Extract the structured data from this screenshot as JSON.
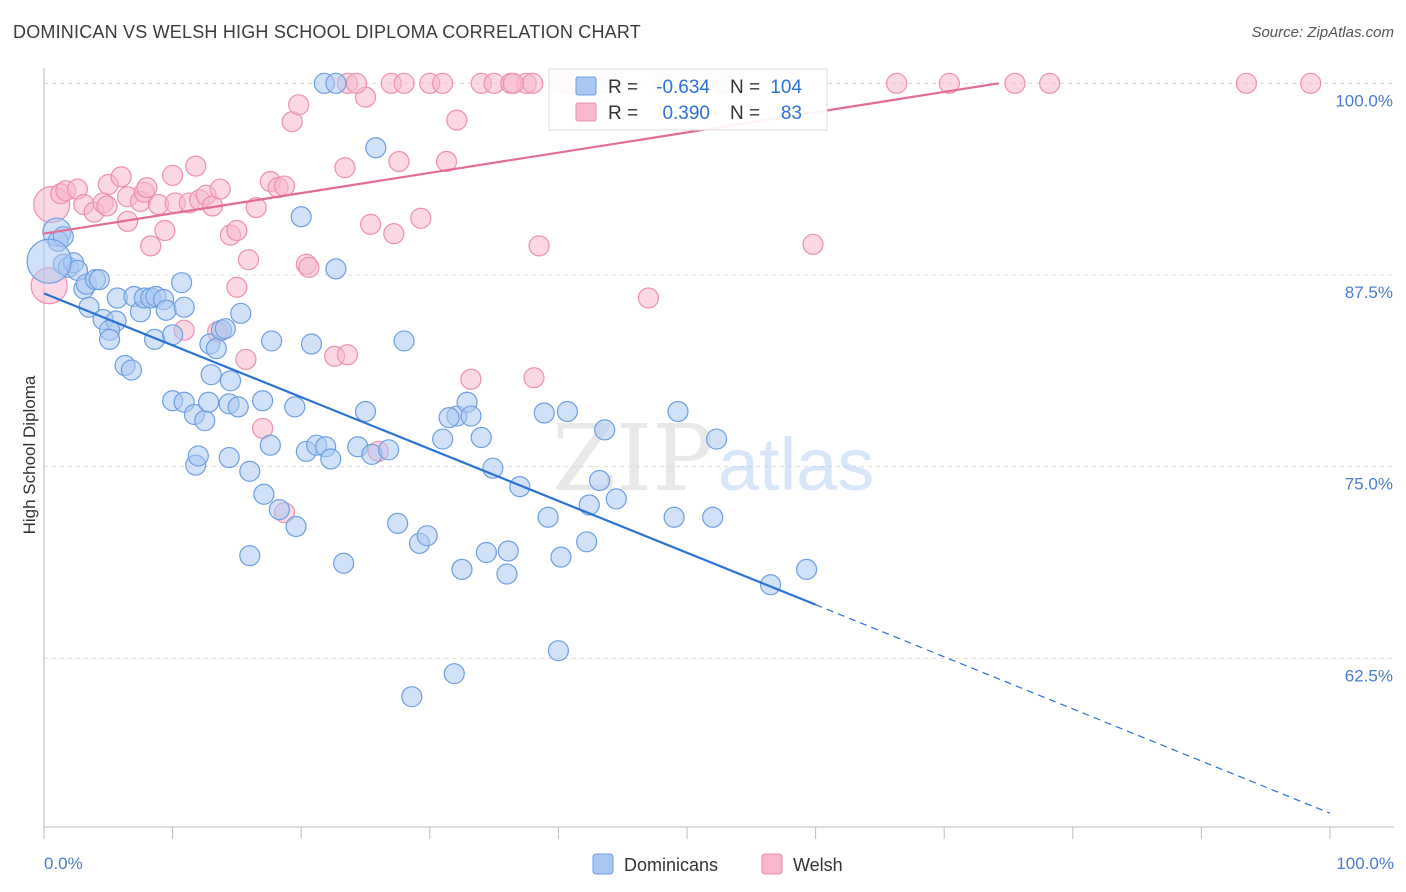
{
  "title": "DOMINICAN VS WELSH HIGH SCHOOL DIPLOMA CORRELATION CHART",
  "source": "Source: ZipAtlas.com",
  "watermark": {
    "zip": "ZIP",
    "atlas": "atlas"
  },
  "colors": {
    "blue_fill": "#a9c8f2",
    "blue_stroke": "#6d9fe0",
    "blue_line": "#2a72d4",
    "pink_fill": "#f7b8cc",
    "pink_stroke": "#ee8fae",
    "pink_line": "#e46b93",
    "tick_text": "#4a7cc9",
    "grid": "#dddddd"
  },
  "legend_top": {
    "rows": [
      {
        "r_label": "R =",
        "r_value": "-0.634",
        "n_label": "N =",
        "n_value": "104",
        "color": "blue"
      },
      {
        "r_label": "R =",
        "r_value": "0.390",
        "n_label": "N =",
        "n_value": "83",
        "color": "pink"
      }
    ]
  },
  "chart_data": {
    "type": "scatter",
    "title": "DOMINICAN VS WELSH HIGH SCHOOL DIPLOMA CORRELATION CHART",
    "xlabel": "",
    "ylabel": "High School Diploma",
    "xlim": [
      0,
      100
    ],
    "ylim": [
      51.5,
      101
    ],
    "x_tick_labels": [
      "0.0%",
      "100.0%"
    ],
    "y_ticks": [
      62.5,
      75.0,
      87.5,
      100.0
    ],
    "y_tick_labels": [
      "62.5%",
      "75.0%",
      "87.5%",
      "100.0%"
    ],
    "grid": true,
    "legend": "bottom-center",
    "series": [
      {
        "name": "Dominicans",
        "color": "blue",
        "R": -0.634,
        "N": 104,
        "trend": {
          "x0": 0,
          "y0": 86.3,
          "x1": 60,
          "y1": 66.0,
          "x_dash_end": 100,
          "y_dash_end": 52.4
        },
        "points": [
          [
            1.0,
            90.3,
            14
          ],
          [
            1.1,
            89.7,
            10
          ],
          [
            1.5,
            90.0,
            10
          ],
          [
            1.5,
            88.2,
            10
          ],
          [
            1.9,
            88.0,
            10
          ],
          [
            2.3,
            88.3,
            10
          ],
          [
            2.6,
            87.8,
            10
          ],
          [
            3.1,
            86.6,
            10
          ],
          [
            3.3,
            86.9,
            10
          ],
          [
            4.0,
            87.2,
            10
          ],
          [
            4.3,
            87.2,
            10
          ],
          [
            3.5,
            85.4,
            10
          ],
          [
            4.6,
            84.6,
            10
          ],
          [
            5.6,
            84.5,
            10
          ],
          [
            5.1,
            83.9,
            10
          ],
          [
            5.1,
            83.3,
            10
          ],
          [
            6.3,
            81.6,
            10
          ],
          [
            6.8,
            81.3,
            10
          ],
          [
            5.7,
            86.0,
            10
          ],
          [
            7.0,
            86.1,
            10
          ],
          [
            7.5,
            85.1,
            10
          ],
          [
            7.8,
            86.0,
            10
          ],
          [
            8.3,
            86.0,
            10
          ],
          [
            8.7,
            86.1,
            10
          ],
          [
            9.3,
            85.9,
            10
          ],
          [
            9.5,
            85.2,
            10
          ],
          [
            10.9,
            85.4,
            10
          ],
          [
            10.7,
            87.0,
            10
          ],
          [
            8.6,
            83.3,
            10
          ],
          [
            10.0,
            83.6,
            10
          ],
          [
            12.9,
            83.0,
            10
          ],
          [
            13.8,
            83.9,
            10
          ],
          [
            14.1,
            84.0,
            10
          ],
          [
            15.3,
            85.0,
            10
          ],
          [
            13.4,
            82.7,
            10
          ],
          [
            10.0,
            79.3,
            10
          ],
          [
            10.9,
            79.2,
            10
          ],
          [
            11.7,
            78.4,
            10
          ],
          [
            12.5,
            78.0,
            10
          ],
          [
            12.8,
            79.2,
            10
          ],
          [
            13.0,
            81.0,
            10
          ],
          [
            14.4,
            79.1,
            10
          ],
          [
            14.5,
            80.6,
            10
          ],
          [
            15.1,
            78.9,
            10
          ],
          [
            11.8,
            75.1,
            10
          ],
          [
            12.0,
            75.7,
            10
          ],
          [
            14.4,
            75.6,
            10
          ],
          [
            17.0,
            79.3,
            10
          ],
          [
            17.6,
            76.4,
            10
          ],
          [
            17.7,
            83.2,
            10
          ],
          [
            16.0,
            74.7,
            10
          ],
          [
            17.1,
            73.2,
            10
          ],
          [
            19.5,
            78.9,
            10
          ],
          [
            20.4,
            76.0,
            10
          ],
          [
            21.2,
            76.4,
            10
          ],
          [
            21.9,
            76.3,
            10
          ],
          [
            22.3,
            75.5,
            10
          ],
          [
            20.8,
            83.0,
            10
          ],
          [
            25.0,
            78.6,
            10
          ],
          [
            24.4,
            76.3,
            10
          ],
          [
            25.5,
            75.8,
            10
          ],
          [
            26.8,
            76.1,
            10
          ],
          [
            20.0,
            91.3,
            10
          ],
          [
            22.7,
            87.9,
            10
          ],
          [
            25.8,
            95.8,
            10
          ],
          [
            27.5,
            71.3,
            10
          ],
          [
            29.2,
            70.0,
            10
          ],
          [
            18.3,
            72.2,
            10
          ],
          [
            19.6,
            71.1,
            10
          ],
          [
            16.0,
            69.2,
            10
          ],
          [
            23.3,
            68.7,
            10
          ],
          [
            29.8,
            70.5,
            10
          ],
          [
            31.0,
            76.8,
            10
          ],
          [
            32.1,
            78.3,
            10
          ],
          [
            31.5,
            78.2,
            10
          ],
          [
            32.9,
            79.2,
            10
          ],
          [
            33.2,
            78.3,
            10
          ],
          [
            34.0,
            76.9,
            10
          ],
          [
            34.9,
            74.9,
            10
          ],
          [
            37.0,
            73.7,
            10
          ],
          [
            36.1,
            69.5,
            10
          ],
          [
            34.4,
            69.4,
            10
          ],
          [
            32.5,
            68.3,
            10
          ],
          [
            36.0,
            68.0,
            10
          ],
          [
            28.0,
            83.2,
            10
          ],
          [
            38.9,
            78.5,
            10
          ],
          [
            39.2,
            71.7,
            10
          ],
          [
            40.7,
            78.6,
            10
          ],
          [
            40.2,
            69.1,
            10
          ],
          [
            42.2,
            70.1,
            10
          ],
          [
            42.4,
            72.5,
            10
          ],
          [
            43.2,
            74.1,
            10
          ],
          [
            43.6,
            77.4,
            10
          ],
          [
            44.5,
            72.9,
            10
          ],
          [
            49.0,
            71.7,
            10
          ],
          [
            49.3,
            78.6,
            10
          ],
          [
            52.3,
            76.8,
            10
          ],
          [
            52.0,
            71.7,
            10
          ],
          [
            56.5,
            67.3,
            10
          ],
          [
            59.3,
            68.3,
            10
          ],
          [
            40.0,
            63.0,
            10
          ],
          [
            28.6,
            60.0,
            10
          ],
          [
            31.9,
            61.5,
            10
          ],
          [
            21.8,
            100.0,
            10
          ],
          [
            22.7,
            100.0,
            10
          ],
          [
            0.4,
            88.4,
            22
          ]
        ]
      },
      {
        "name": "Welsh",
        "color": "pink",
        "R": 0.39,
        "N": 83,
        "trend": {
          "x0": 0,
          "y0": 90.2,
          "x1": 100,
          "y1": 103.4
        },
        "points": [
          [
            0.6,
            92.1,
            18
          ],
          [
            0.4,
            86.8,
            18
          ],
          [
            1.3,
            92.8,
            10
          ],
          [
            1.7,
            93.0,
            10
          ],
          [
            2.6,
            93.1,
            10
          ],
          [
            3.1,
            92.1,
            10
          ],
          [
            3.9,
            91.6,
            10
          ],
          [
            4.6,
            92.2,
            10
          ],
          [
            4.9,
            92.0,
            10
          ],
          [
            5.0,
            93.4,
            10
          ],
          [
            6.0,
            93.9,
            10
          ],
          [
            6.5,
            92.6,
            10
          ],
          [
            6.5,
            91.0,
            10
          ],
          [
            7.5,
            92.3,
            10
          ],
          [
            7.8,
            92.9,
            10
          ],
          [
            8.0,
            93.2,
            10
          ],
          [
            8.3,
            89.4,
            10
          ],
          [
            8.9,
            92.1,
            10
          ],
          [
            9.4,
            90.4,
            10
          ],
          [
            10.0,
            94.0,
            10
          ],
          [
            10.2,
            92.2,
            10
          ],
          [
            11.3,
            92.2,
            10
          ],
          [
            11.8,
            94.6,
            10
          ],
          [
            12.1,
            92.4,
            10
          ],
          [
            12.6,
            92.7,
            10
          ],
          [
            13.1,
            92.0,
            10
          ],
          [
            13.7,
            93.1,
            10
          ],
          [
            14.5,
            90.1,
            10
          ],
          [
            15.0,
            90.4,
            10
          ],
          [
            15.0,
            86.7,
            10
          ],
          [
            15.9,
            88.5,
            10
          ],
          [
            16.5,
            91.9,
            10
          ],
          [
            17.6,
            93.6,
            10
          ],
          [
            18.2,
            93.2,
            10
          ],
          [
            18.7,
            93.3,
            10
          ],
          [
            19.3,
            97.5,
            10
          ],
          [
            19.8,
            98.6,
            10
          ],
          [
            20.4,
            88.2,
            10
          ],
          [
            20.6,
            88.0,
            10
          ],
          [
            22.6,
            82.2,
            10
          ],
          [
            23.4,
            94.5,
            10
          ],
          [
            23.6,
            82.3,
            10
          ],
          [
            25.0,
            99.1,
            10
          ],
          [
            25.4,
            90.8,
            10
          ],
          [
            26.0,
            76.0,
            10
          ],
          [
            27.2,
            90.2,
            10
          ],
          [
            27.6,
            94.9,
            10
          ],
          [
            29.3,
            91.2,
            10
          ],
          [
            31.3,
            94.9,
            10
          ],
          [
            32.1,
            97.6,
            10
          ],
          [
            34.0,
            100.0,
            10
          ],
          [
            33.2,
            80.7,
            10
          ],
          [
            37.5,
            100.0,
            10
          ],
          [
            38.0,
            100.0,
            10
          ],
          [
            38.5,
            89.4,
            10
          ],
          [
            38.1,
            80.8,
            10
          ],
          [
            40.2,
            100.0,
            10
          ],
          [
            43.8,
            100.0,
            10
          ],
          [
            47.0,
            86.0,
            10
          ],
          [
            52.8,
            100.0,
            10
          ],
          [
            59.8,
            89.5,
            10
          ],
          [
            66.3,
            100.0,
            10
          ],
          [
            70.4,
            100.0,
            10
          ],
          [
            75.5,
            100.0,
            10
          ],
          [
            78.2,
            100.0,
            10
          ],
          [
            93.5,
            100.0,
            10
          ],
          [
            98.5,
            100.0,
            10
          ],
          [
            23.6,
            100.0,
            10
          ],
          [
            24.3,
            100.0,
            10
          ],
          [
            27.0,
            100.0,
            10
          ],
          [
            28.0,
            100.0,
            10
          ],
          [
            30.0,
            100.0,
            10
          ],
          [
            31.0,
            100.0,
            10
          ],
          [
            35.0,
            100.0,
            10
          ],
          [
            36.3,
            100.0,
            10
          ],
          [
            36.5,
            100.0,
            10
          ],
          [
            40.9,
            100.0,
            10
          ],
          [
            48.2,
            100.0,
            10
          ],
          [
            17.0,
            77.5,
            10
          ],
          [
            18.7,
            72.0,
            10
          ],
          [
            10.9,
            83.9,
            10
          ],
          [
            13.5,
            83.8,
            10
          ],
          [
            15.7,
            82.0,
            10
          ]
        ]
      }
    ]
  },
  "bottom_legend": [
    {
      "label": "Dominicans",
      "color": "blue"
    },
    {
      "label": "Welsh",
      "color": "pink"
    }
  ]
}
